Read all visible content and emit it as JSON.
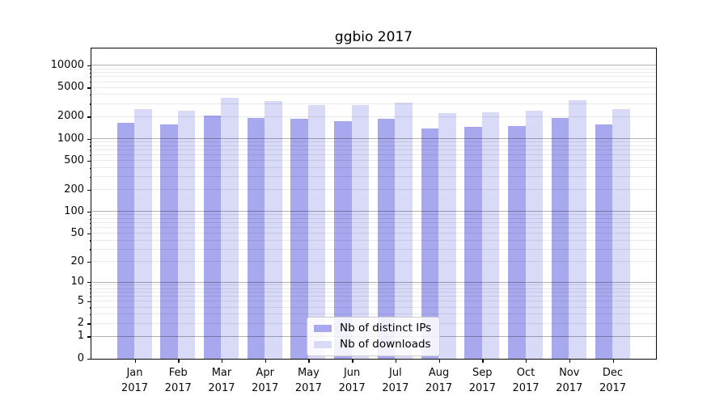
{
  "title": "ggbio 2017",
  "chart_data": {
    "type": "bar",
    "title": "ggbio 2017",
    "categories": [
      "Jan 2017",
      "Feb 2017",
      "Mar 2017",
      "Apr 2017",
      "May 2017",
      "Jun 2017",
      "Jul 2017",
      "Aug 2017",
      "Sep 2017",
      "Oct 2017",
      "Nov 2017",
      "Dec 2017"
    ],
    "series": [
      {
        "name": "Nb of distinct IPs",
        "color": "#a8a8ee",
        "values": [
          1670,
          1570,
          2100,
          1920,
          1870,
          1730,
          1880,
          1410,
          1460,
          1500,
          1960,
          1590
        ]
      },
      {
        "name": "Nb of downloads",
        "color": "#d9d9f8",
        "values": [
          2540,
          2440,
          3700,
          3300,
          2940,
          2880,
          3120,
          2240,
          2330,
          2450,
          3430,
          2570
        ]
      }
    ],
    "xlabel": "",
    "ylabel": "",
    "y_scale": "log1p",
    "y_ticks": [
      0,
      1,
      2,
      5,
      10,
      20,
      50,
      100,
      200,
      500,
      1000,
      2000,
      5000,
      10000
    ],
    "ylim": [
      0,
      16800
    ],
    "grid": "both",
    "legend_position": "lower center",
    "colors": {
      "major_grid": "#b3b3b3",
      "minor_grid": "#ebebeb",
      "spine": "#0a0a0a",
      "background": "#ffffff"
    }
  }
}
